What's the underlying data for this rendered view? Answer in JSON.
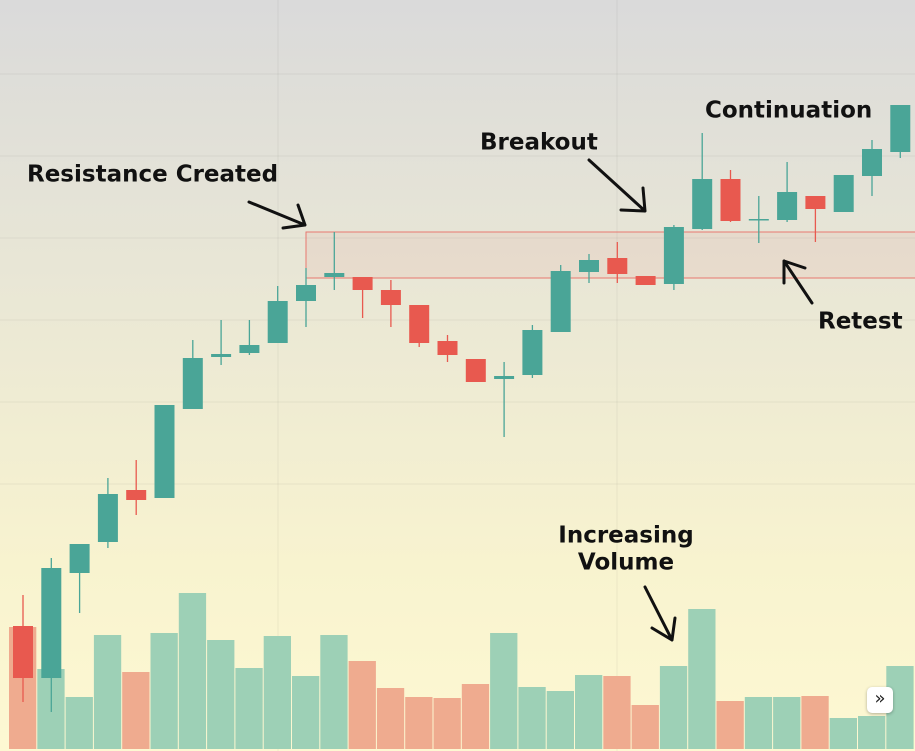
{
  "chart_data": {
    "type": "candlestick",
    "up_color": "#4aa597",
    "down_color": "#e8594f",
    "volume_up_color": "#9dd0b6",
    "volume_down_color": "#efab8f",
    "ylim": [
      0,
      751
    ],
    "volume_ylim": [
      0,
      300
    ],
    "open": [
      125,
      73,
      178,
      209,
      261,
      253,
      342,
      394,
      398,
      408,
      450,
      474,
      474,
      461,
      446,
      410,
      392,
      372,
      376,
      419,
      479,
      493,
      475,
      467,
      522,
      572,
      531,
      531,
      555,
      539,
      575,
      599
    ],
    "high": [
      156,
      193,
      207,
      273,
      291,
      346,
      411,
      431,
      431,
      465,
      483,
      519,
      474,
      471,
      446,
      416,
      392,
      389,
      426,
      486,
      497,
      509,
      475,
      526,
      618,
      581,
      555,
      589,
      555,
      576,
      611,
      646
    ],
    "low": [
      49,
      39,
      138,
      203,
      236,
      253,
      342,
      386,
      396,
      408,
      424,
      461,
      433,
      424,
      404,
      389,
      369,
      314,
      373,
      419,
      468,
      468,
      466,
      461,
      521,
      529,
      508,
      529,
      509,
      539,
      555,
      593
    ],
    "close": [
      73,
      183,
      207,
      257,
      251,
      346,
      393,
      397,
      406,
      450,
      466,
      478,
      461,
      446,
      408,
      396,
      369,
      375,
      421,
      480,
      491,
      477,
      466,
      524,
      572,
      530,
      532,
      559,
      542,
      576,
      602,
      646
    ],
    "volume": [
      122,
      80,
      52,
      114,
      77,
      116,
      156,
      109,
      81,
      113,
      73,
      114,
      88,
      61,
      52,
      51,
      65,
      116,
      62,
      58,
      74,
      73,
      44,
      83,
      140,
      48,
      52,
      52,
      53,
      31,
      33,
      83
    ],
    "resistance_zone": [
      473,
      519
    ],
    "annotations": [
      {
        "lines": [
          "Resistance Created"
        ]
      },
      {
        "lines": [
          "Breakout"
        ]
      },
      {
        "lines": [
          "Continuation"
        ]
      },
      {
        "lines": [
          "Retest"
        ]
      },
      {
        "lines": [
          "Increasing",
          "Volume"
        ]
      }
    ]
  },
  "button_label": "»"
}
